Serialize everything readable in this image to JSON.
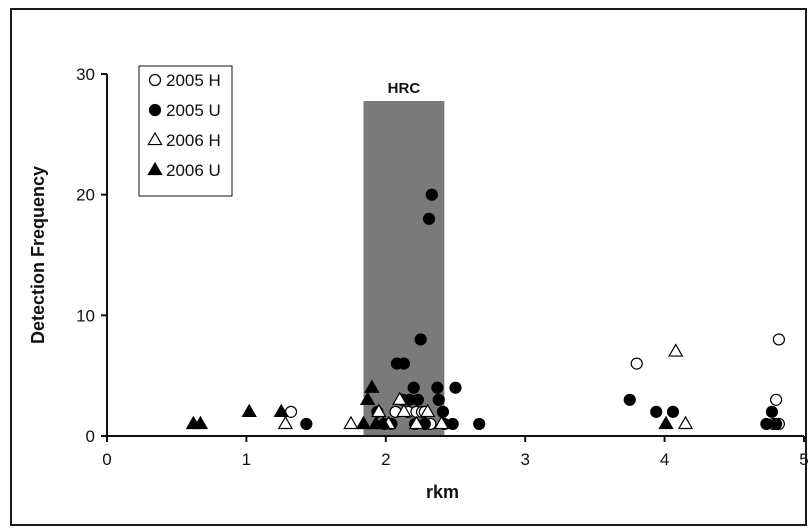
{
  "chart_data": {
    "type": "scatter",
    "title": "",
    "xlabel": "rkm",
    "ylabel": "Detection Frequency",
    "xlim": [
      0,
      5
    ],
    "ylim": [
      0,
      30
    ],
    "x_ticks": [
      "0",
      "1",
      "2",
      "3",
      "4",
      "5"
    ],
    "y_ticks": [
      "0",
      "10",
      "20",
      "30"
    ],
    "grid": false,
    "legend_position": "top-left",
    "band": {
      "label": "HRC",
      "x_start": 1.84,
      "x_end": 2.42,
      "color": "#7a7a7a"
    },
    "series": [
      {
        "name": "2005 H",
        "marker": "circle-open",
        "points": [
          [
            1.32,
            2
          ],
          [
            2.07,
            2
          ],
          [
            2.16,
            2
          ],
          [
            2.22,
            2
          ],
          [
            2.26,
            2
          ],
          [
            2.28,
            2
          ],
          [
            2.32,
            1
          ],
          [
            3.8,
            6
          ],
          [
            4.8,
            3
          ],
          [
            4.82,
            8
          ],
          [
            4.78,
            1
          ],
          [
            4.82,
            1
          ]
        ]
      },
      {
        "name": "2005 U",
        "marker": "circle-filled",
        "points": [
          [
            1.43,
            1
          ],
          [
            1.94,
            2
          ],
          [
            1.99,
            1
          ],
          [
            2.04,
            1
          ],
          [
            2.08,
            6
          ],
          [
            2.12,
            3
          ],
          [
            2.13,
            6
          ],
          [
            2.17,
            3
          ],
          [
            2.2,
            4
          ],
          [
            2.21,
            1
          ],
          [
            2.23,
            3
          ],
          [
            2.25,
            8
          ],
          [
            2.28,
            1
          ],
          [
            2.31,
            18
          ],
          [
            2.33,
            20
          ],
          [
            2.37,
            4
          ],
          [
            2.38,
            3
          ],
          [
            2.41,
            2
          ],
          [
            2.42,
            1
          ],
          [
            2.48,
            1
          ],
          [
            2.5,
            4
          ],
          [
            2.67,
            1
          ],
          [
            3.75,
            3
          ],
          [
            3.94,
            2
          ],
          [
            4.06,
            2
          ],
          [
            4.73,
            1
          ],
          [
            4.77,
            2
          ],
          [
            4.8,
            1
          ]
        ]
      },
      {
        "name": "2006 H",
        "marker": "triangle-open",
        "points": [
          [
            1.28,
            1
          ],
          [
            1.75,
            1
          ],
          [
            1.95,
            2
          ],
          [
            2.02,
            1
          ],
          [
            2.1,
            3
          ],
          [
            2.13,
            2
          ],
          [
            2.22,
            1
          ],
          [
            2.3,
            2
          ],
          [
            2.4,
            1
          ],
          [
            4.08,
            7
          ],
          [
            4.15,
            1
          ]
        ]
      },
      {
        "name": "2006 U",
        "marker": "triangle-filled",
        "points": [
          [
            0.62,
            1
          ],
          [
            0.67,
            1
          ],
          [
            1.02,
            2
          ],
          [
            1.25,
            2
          ],
          [
            1.84,
            1
          ],
          [
            1.87,
            3
          ],
          [
            1.9,
            4
          ],
          [
            1.93,
            1
          ],
          [
            1.98,
            1
          ],
          [
            4.01,
            1
          ]
        ]
      }
    ]
  }
}
